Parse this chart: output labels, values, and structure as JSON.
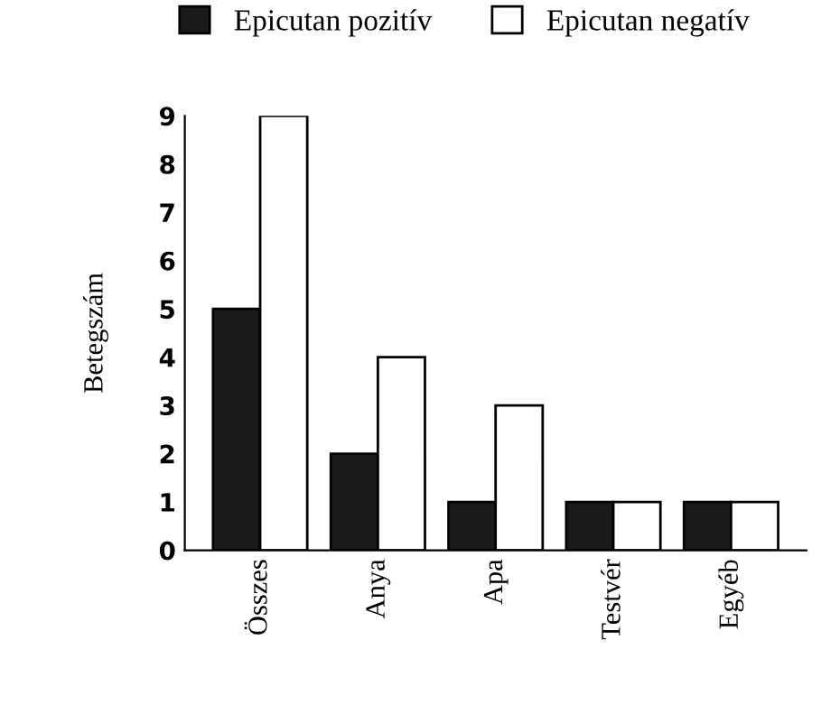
{
  "chart_data": {
    "type": "bar",
    "ylabel": "Betegszám",
    "categories": [
      "Összes",
      "Anya",
      "Apa",
      "Testvér",
      "Egyéb"
    ],
    "series": [
      {
        "name": "Epicutan pozitív",
        "color": "#1a1a1a",
        "values": [
          5,
          2,
          1,
          1,
          1
        ]
      },
      {
        "name": "Epicutan negatív",
        "color": "#ffffff",
        "values": [
          9,
          4,
          3,
          1,
          1
        ]
      }
    ],
    "ylim": [
      0,
      9
    ],
    "yticks": [
      0,
      1,
      2,
      3,
      4,
      5,
      6,
      7,
      8,
      9
    ],
    "grid": false,
    "legend": "top"
  }
}
